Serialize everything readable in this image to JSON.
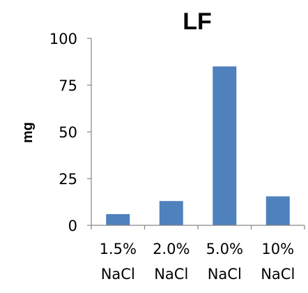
{
  "chart_data": {
    "type": "bar",
    "title": "LF",
    "xlabel": "",
    "ylabel": "mg",
    "ylim": [
      0,
      100
    ],
    "yticks": [
      0,
      25,
      50,
      75,
      100
    ],
    "categories": [
      [
        "1.5%",
        "NaCl"
      ],
      [
        "2.0%",
        "NaCl"
      ],
      [
        "5.0%",
        "NaCl"
      ],
      [
        "10%",
        "NaCl"
      ]
    ],
    "values": [
      6,
      13,
      85,
      15.5
    ],
    "bar_color": "#4f81bd",
    "grid": false,
    "legend": "none"
  }
}
